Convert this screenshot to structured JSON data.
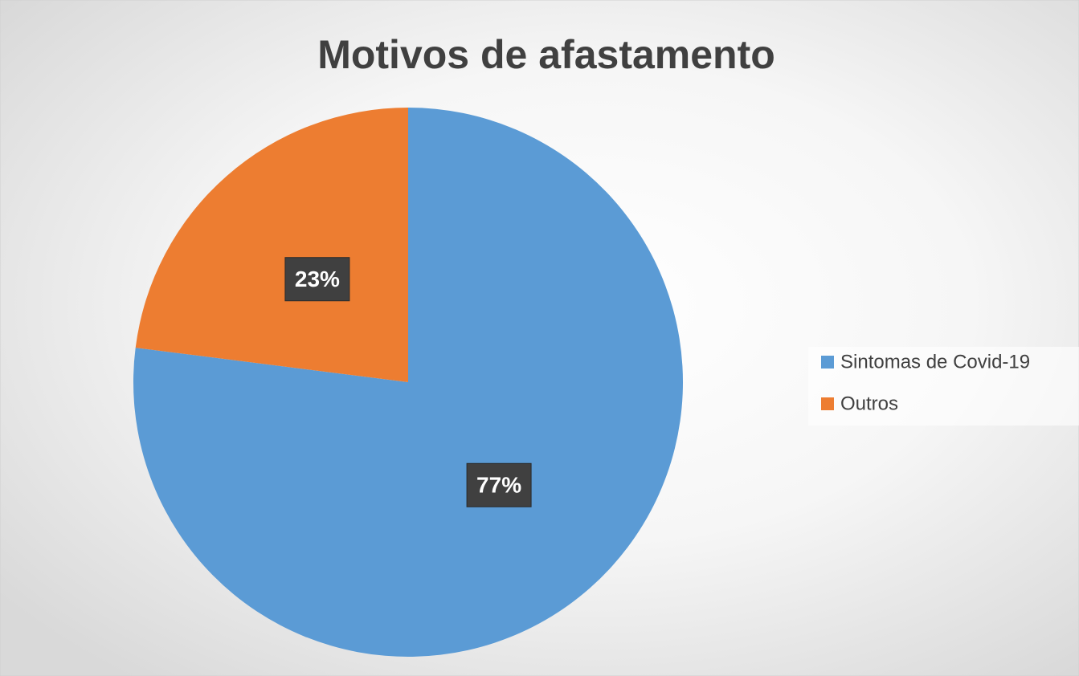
{
  "chart_data": {
    "type": "pie",
    "title": "Motivos de afastamento",
    "categories": [
      "Sintomas de Covid-19",
      "Outros"
    ],
    "values": [
      77,
      23
    ],
    "value_labels": [
      "77%",
      "23%"
    ],
    "colors": [
      "#5b9bd5",
      "#ed7d31"
    ],
    "legend": "right"
  }
}
